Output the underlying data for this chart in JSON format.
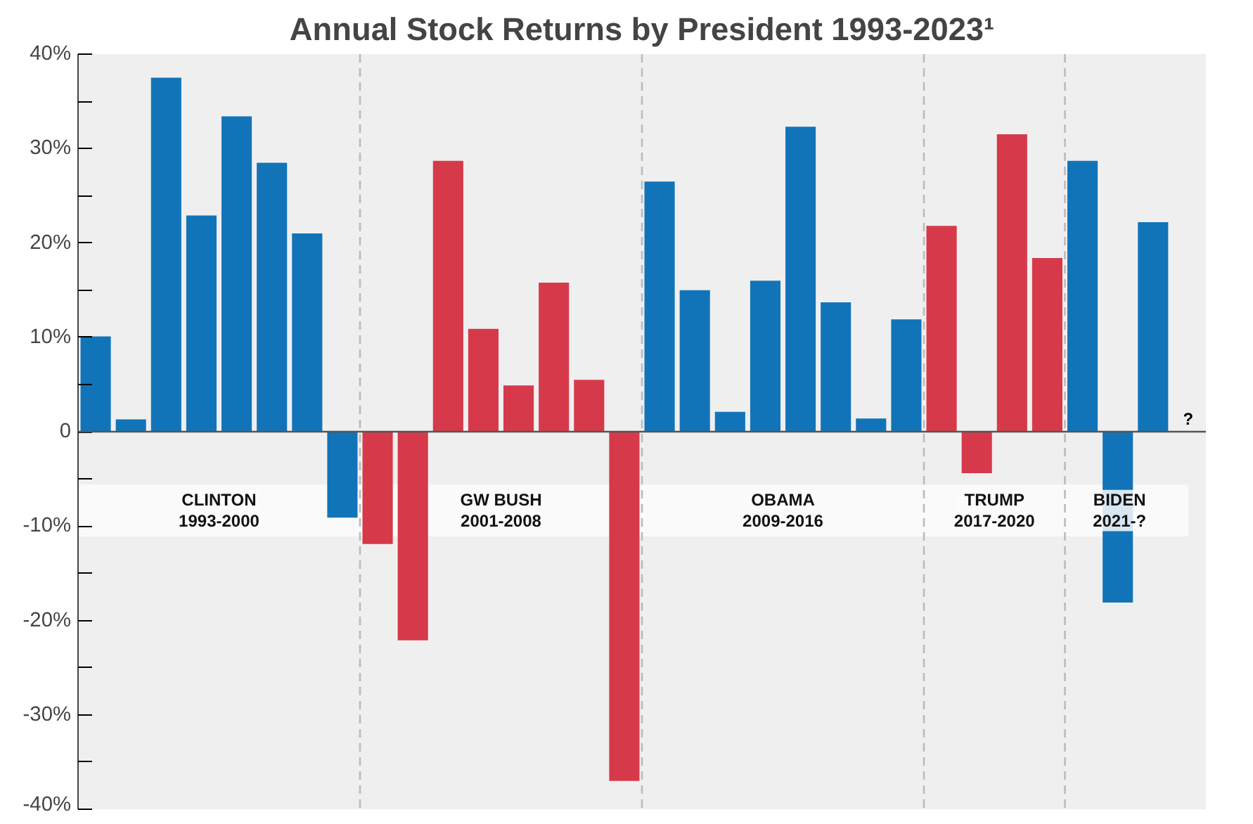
{
  "chart_data": {
    "type": "bar",
    "title": "Annual Stock Returns by President 1993-2023¹",
    "categories": [
      null,
      null,
      null,
      null,
      null,
      null,
      null,
      null,
      null,
      null,
      null,
      null,
      null,
      null,
      null,
      null,
      null,
      null,
      null,
      null,
      null,
      null,
      null,
      null,
      null,
      null,
      null,
      null,
      null,
      null,
      null,
      null
    ],
    "values": [
      10.1,
      1.3,
      37.5,
      22.9,
      33.4,
      28.5,
      21.0,
      -9.1,
      -11.9,
      -22.1,
      28.7,
      10.9,
      4.9,
      15.8,
      5.5,
      -37.0,
      26.5,
      15.0,
      2.1,
      16.0,
      32.3,
      13.7,
      1.4,
      11.9,
      21.8,
      -4.4,
      31.5,
      18.4,
      28.7,
      -18.1,
      22.2,
      null
    ],
    "colors": [
      "#1274b8",
      "#1274b8",
      "#1274b8",
      "#1274b8",
      "#1274b8",
      "#1274b8",
      "#1274b8",
      "#1274b8",
      "#d63a4a",
      "#d63a4a",
      "#d63a4a",
      "#d63a4a",
      "#d63a4a",
      "#d63a4a",
      "#d63a4a",
      "#d63a4a",
      "#1274b8",
      "#1274b8",
      "#1274b8",
      "#1274b8",
      "#1274b8",
      "#1274b8",
      "#1274b8",
      "#1274b8",
      "#d63a4a",
      "#d63a4a",
      "#d63a4a",
      "#d63a4a",
      "#1274b8",
      "#1274b8",
      "#1274b8",
      "#1274b8"
    ],
    "value_labels": [
      null,
      null,
      null,
      null,
      null,
      null,
      null,
      null,
      null,
      null,
      null,
      null,
      null,
      null,
      null,
      null,
      null,
      null,
      null,
      null,
      null,
      null,
      null,
      null,
      null,
      null,
      null,
      null,
      null,
      null,
      null,
      "?"
    ],
    "ylim": [
      -40,
      40
    ],
    "yticks": [
      {
        "value": -40,
        "label": "-40%"
      },
      {
        "value": -35,
        "label": null
      },
      {
        "value": -30,
        "label": "-30%"
      },
      {
        "value": -25,
        "label": null
      },
      {
        "value": -20,
        "label": "-20%"
      },
      {
        "value": -15,
        "label": null
      },
      {
        "value": -10,
        "label": "-10%"
      },
      {
        "value": -5,
        "label": null
      },
      0,
      {
        "value": 5,
        "label": null
      },
      {
        "value": 10,
        "label": "10%"
      },
      {
        "value": 15,
        "label": null
      },
      {
        "value": 20,
        "label": "20%"
      },
      {
        "value": 25,
        "label": null
      },
      {
        "value": 30,
        "label": "30%"
      },
      {
        "value": 35,
        "label": null
      },
      {
        "value": 40,
        "label": "40%"
      }
    ],
    "ref_lines": [
      {
        "axis": "y",
        "value": 0,
        "color": "#555555",
        "line_style": "solid"
      }
    ],
    "bands": [
      {
        "axis": "y",
        "from": -5.6,
        "to": -11.1,
        "color": "#fafafa"
      }
    ],
    "annotations": [
      "CLINTON\n1993-2000",
      "GW BUSH\n2001-2008",
      "OBAMA\n2009-2016",
      "TRUMP\n2017-2020",
      "BIDEN\n2021-?"
    ],
    "grid": false
  }
}
